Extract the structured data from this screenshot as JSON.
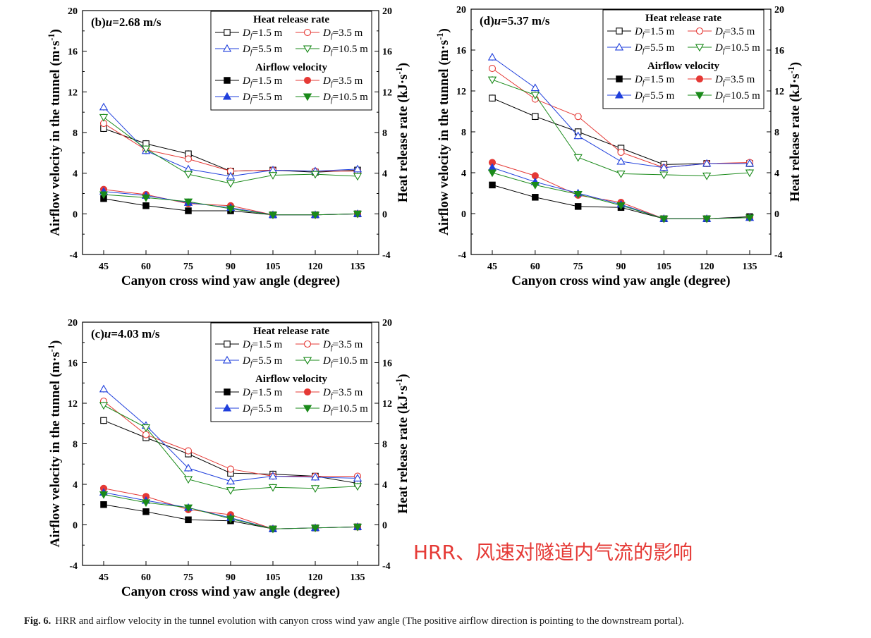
{
  "figure": {
    "caption_label": "Fig. 6.",
    "caption_text": "HRR and airflow velocity in the tunnel evolution with canyon cross wind yaw angle (The positive airflow direction is pointing to the downstream portal).",
    "annotation": "HRR、风速对隧道内气流的影响"
  },
  "chart_data": [
    {
      "type": "line",
      "panel_label": "(b)",
      "title": "u=2.68 m/s",
      "xlabel": "Canyon cross wind yaw angle (degree)",
      "ylabel_left": "Airflow velocity in the tunnel (m·s-1)",
      "ylabel_right": "Heat release rate (kJ·s-1)",
      "x": [
        45,
        60,
        75,
        90,
        105,
        120,
        135
      ],
      "ylim": [
        -4,
        20
      ],
      "yticks": [
        -4,
        0,
        4,
        8,
        12,
        16,
        20
      ],
      "legend_position": "top-right",
      "legend_groups": [
        "Heat release rate",
        "Airflow velocity"
      ],
      "series": [
        {
          "name": "Df=1.5 m",
          "group": "Heat release rate",
          "color": "#000000",
          "marker": "square-open",
          "values": [
            8.4,
            6.9,
            5.9,
            4.2,
            4.3,
            4.1,
            4.3
          ]
        },
        {
          "name": "Df=3.5 m",
          "group": "Heat release rate",
          "color": "#e53935",
          "marker": "circle-open",
          "values": [
            8.9,
            6.3,
            5.4,
            4.2,
            4.3,
            4.2,
            4.2
          ]
        },
        {
          "name": "Df=5.5 m",
          "group": "Heat release rate",
          "color": "#1f3fdc",
          "marker": "triangle-up-open",
          "values": [
            10.5,
            6.2,
            4.4,
            3.7,
            4.3,
            4.2,
            4.4
          ]
        },
        {
          "name": "Df=10.5 m",
          "group": "Heat release rate",
          "color": "#1a8a1a",
          "marker": "triangle-down-open",
          "values": [
            9.5,
            6.4,
            3.9,
            3.0,
            3.8,
            3.9,
            3.7
          ]
        },
        {
          "name": "Df=1.5 m",
          "group": "Airflow velocity",
          "color": "#000000",
          "marker": "square-filled",
          "values": [
            1.5,
            0.8,
            0.3,
            0.3,
            -0.1,
            -0.1,
            0.0
          ]
        },
        {
          "name": "Df=3.5 m",
          "group": "Airflow velocity",
          "color": "#e53935",
          "marker": "circle-filled",
          "values": [
            2.4,
            1.9,
            1.0,
            0.8,
            -0.1,
            -0.1,
            0.0
          ]
        },
        {
          "name": "Df=5.5 m",
          "group": "Airflow velocity",
          "color": "#1f3fdc",
          "marker": "triangle-up-filled",
          "values": [
            2.2,
            1.8,
            1.1,
            0.6,
            -0.1,
            -0.1,
            0.0
          ]
        },
        {
          "name": "Df=10.5 m",
          "group": "Airflow velocity",
          "color": "#1a8a1a",
          "marker": "triangle-down-filled",
          "values": [
            1.9,
            1.6,
            1.2,
            0.5,
            -0.1,
            -0.1,
            0.0
          ]
        }
      ]
    },
    {
      "type": "line",
      "panel_label": "(d)",
      "title": "u=5.37 m/s",
      "xlabel": "Canyon cross wind yaw angle (degree)",
      "ylabel_left": "Airflow velocity in the tunnel (m·s-1)",
      "ylabel_right": "Heat release rate (kJ·s-1)",
      "x": [
        45,
        60,
        75,
        90,
        105,
        120,
        135
      ],
      "ylim": [
        -4,
        20
      ],
      "yticks": [
        -4,
        0,
        4,
        8,
        12,
        16,
        20
      ],
      "legend_position": "top-right",
      "legend_groups": [
        "Heat release rate",
        "Airflow velocity"
      ],
      "series": [
        {
          "name": "Df=1.5 m",
          "group": "Heat release rate",
          "color": "#000000",
          "marker": "square-open",
          "values": [
            11.3,
            9.5,
            8.0,
            6.4,
            4.8,
            4.9,
            4.9
          ]
        },
        {
          "name": "Df=3.5 m",
          "group": "Heat release rate",
          "color": "#e53935",
          "marker": "circle-open",
          "values": [
            14.2,
            11.2,
            9.5,
            6.0,
            4.5,
            4.9,
            5.0
          ]
        },
        {
          "name": "Df=5.5 m",
          "group": "Heat release rate",
          "color": "#1f3fdc",
          "marker": "triangle-up-open",
          "values": [
            15.3,
            12.3,
            7.6,
            5.1,
            4.5,
            4.9,
            4.9
          ]
        },
        {
          "name": "Df=10.5 m",
          "group": "Heat release rate",
          "color": "#1a8a1a",
          "marker": "triangle-down-open",
          "values": [
            13.1,
            11.6,
            5.5,
            3.9,
            3.8,
            3.7,
            4.0
          ]
        },
        {
          "name": "Df=1.5 m",
          "group": "Airflow velocity",
          "color": "#000000",
          "marker": "square-filled",
          "values": [
            2.8,
            1.6,
            0.7,
            0.6,
            -0.5,
            -0.5,
            -0.3
          ]
        },
        {
          "name": "Df=3.5 m",
          "group": "Airflow velocity",
          "color": "#e53935",
          "marker": "circle-filled",
          "values": [
            5.0,
            3.7,
            1.8,
            1.1,
            -0.5,
            -0.5,
            -0.4
          ]
        },
        {
          "name": "Df=5.5 m",
          "group": "Airflow velocity",
          "color": "#1f3fdc",
          "marker": "triangle-up-filled",
          "values": [
            4.5,
            3.1,
            2.0,
            0.9,
            -0.5,
            -0.5,
            -0.4
          ]
        },
        {
          "name": "Df=10.5 m",
          "group": "Airflow velocity",
          "color": "#1a8a1a",
          "marker": "triangle-down-filled",
          "values": [
            4.0,
            2.8,
            1.9,
            0.8,
            -0.5,
            -0.5,
            -0.4
          ]
        }
      ]
    },
    {
      "type": "line",
      "panel_label": "(c)",
      "title": "u=4.03 m/s",
      "xlabel": "Canyon cross wind yaw angle (degree)",
      "ylabel_left": "Airflow velocity in the tunnel (m·s-1)",
      "ylabel_right": "Heat release rate (kJ·s-1)",
      "x": [
        45,
        60,
        75,
        90,
        105,
        120,
        135
      ],
      "ylim": [
        -4,
        20
      ],
      "yticks": [
        -4,
        0,
        4,
        8,
        12,
        16,
        20
      ],
      "legend_position": "top-right",
      "legend_groups": [
        "Heat release rate",
        "Airflow velocity"
      ],
      "series": [
        {
          "name": "Df=1.5 m",
          "group": "Heat release rate",
          "color": "#000000",
          "marker": "square-open",
          "values": [
            10.3,
            8.6,
            7.0,
            5.1,
            5.0,
            4.8,
            4.1
          ]
        },
        {
          "name": "Df=3.5 m",
          "group": "Heat release rate",
          "color": "#e53935",
          "marker": "circle-open",
          "values": [
            12.2,
            8.9,
            7.3,
            5.5,
            4.8,
            4.8,
            4.8
          ]
        },
        {
          "name": "Df=5.5 m",
          "group": "Heat release rate",
          "color": "#1f3fdc",
          "marker": "triangle-up-open",
          "values": [
            13.4,
            9.8,
            5.6,
            4.3,
            4.8,
            4.7,
            4.6
          ]
        },
        {
          "name": "Df=10.5 m",
          "group": "Heat release rate",
          "color": "#1a8a1a",
          "marker": "triangle-down-open",
          "values": [
            11.8,
            9.6,
            4.5,
            3.4,
            3.7,
            3.6,
            3.8
          ]
        },
        {
          "name": "Df=1.5 m",
          "group": "Airflow velocity",
          "color": "#000000",
          "marker": "square-filled",
          "values": [
            2.0,
            1.3,
            0.5,
            0.4,
            -0.4,
            -0.3,
            -0.2
          ]
        },
        {
          "name": "Df=3.5 m",
          "group": "Airflow velocity",
          "color": "#e53935",
          "marker": "circle-filled",
          "values": [
            3.6,
            2.8,
            1.5,
            1.0,
            -0.4,
            -0.3,
            -0.2
          ]
        },
        {
          "name": "Df=5.5 m",
          "group": "Airflow velocity",
          "color": "#1f3fdc",
          "marker": "triangle-up-filled",
          "values": [
            3.2,
            2.4,
            1.7,
            0.7,
            -0.4,
            -0.3,
            -0.2
          ]
        },
        {
          "name": "Df=10.5 m",
          "group": "Airflow velocity",
          "color": "#1a8a1a",
          "marker": "triangle-down-filled",
          "values": [
            3.0,
            2.2,
            1.7,
            0.6,
            -0.4,
            -0.3,
            -0.2
          ]
        }
      ]
    }
  ]
}
